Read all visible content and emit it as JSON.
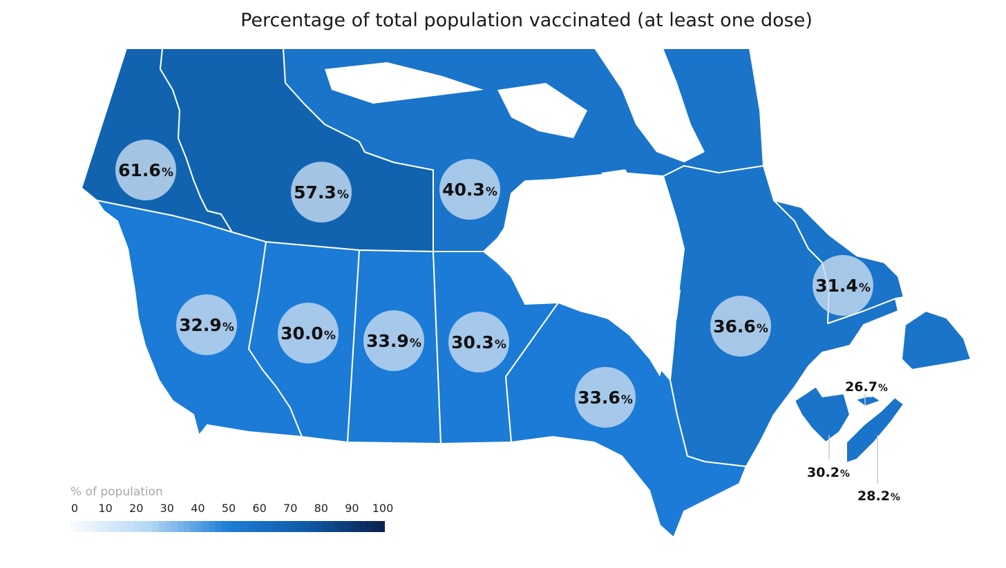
{
  "title": "Percentage of total population vaccinated (at least one dose)",
  "colors": {
    "dark": "#1163b0",
    "mid": "#1a74c9",
    "light": "#1b7bd6",
    "bubble": "#c8dcf0"
  },
  "regions": {
    "yukon": {
      "value": "61.6",
      "unit": "%"
    },
    "northwest_territories": {
      "value": "57.3",
      "unit": "%"
    },
    "nunavut": {
      "value": "40.3",
      "unit": "%"
    },
    "british_columbia": {
      "value": "32.9",
      "unit": "%"
    },
    "alberta": {
      "value": "30.0",
      "unit": "%"
    },
    "saskatchewan": {
      "value": "33.9",
      "unit": "%"
    },
    "manitoba": {
      "value": "30.3",
      "unit": "%"
    },
    "ontario": {
      "value": "33.6",
      "unit": "%"
    },
    "quebec": {
      "value": "36.6",
      "unit": "%"
    },
    "newfoundland_labrador": {
      "value": "31.4",
      "unit": "%"
    },
    "prince_edward_island": {
      "value": "26.7",
      "unit": "%"
    },
    "new_brunswick": {
      "value": "30.2",
      "unit": "%"
    },
    "nova_scotia": {
      "value": "28.2",
      "unit": "%"
    }
  },
  "legend": {
    "title": "% of population",
    "ticks": [
      "0",
      "10",
      "20",
      "30",
      "40",
      "50",
      "60",
      "70",
      "80",
      "90",
      "100"
    ]
  }
}
